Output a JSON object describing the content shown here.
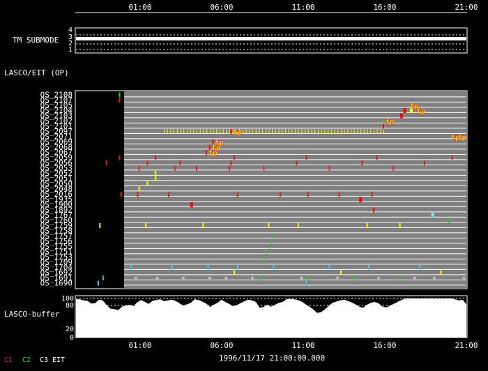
{
  "time_axis": {
    "labels": [
      "01:00",
      "06:00",
      "11:00",
      "16:00",
      "21:00"
    ],
    "start_hour": -2.9,
    "end_hour": 21.0,
    "date_label": "1996/11/17 21:00:00.000"
  },
  "panels": {
    "tm_submode": {
      "label": "TM SUBMODE",
      "ticks": [
        "4",
        "3",
        "2",
        "1"
      ]
    },
    "lasco_eit": {
      "label": "LASCO/EIT (OP)"
    },
    "lasco_buffer": {
      "label": "LASCO-buffer",
      "ticks": [
        "100",
        "80",
        "20",
        "0"
      ]
    }
  },
  "legend": [
    {
      "label": "C1",
      "color": "#e02020"
    },
    {
      "label": "C2",
      "color": "#20d020"
    },
    {
      "label": "C3",
      "color": "#ffffff"
    },
    {
      "label": "EIT",
      "color": "#ffffff"
    }
  ],
  "chart_data": {
    "type": "timeline",
    "op_rows": [
      "OS_2108",
      "OS_2107",
      "OS_2105",
      "OS_2104",
      "OS_2103",
      "OS_2102",
      "OS_2101",
      "OS_2097",
      "OS_2071",
      "OS_2069",
      "OS_2068",
      "OS_2067",
      "OS_2059",
      "OS_2056",
      "OS_2053",
      "OS_2052",
      "OS_2051",
      "OS_2050",
      "OS_2048",
      "OS_2016",
      "OS_1935",
      "OS_1900",
      "OS_1892",
      "OS_1767",
      "OS_1760",
      "OS_1759",
      "OS_1758",
      "OS_1757",
      "OS_1756",
      "OS_1755",
      "OS_1751",
      "OS_1753",
      "OS_1709",
      "OS_1704",
      "OS_1692",
      "OS_1691",
      "OS_1690"
    ],
    "events": [
      {
        "row": 0,
        "t": -0.2,
        "color": "#20d020"
      },
      {
        "row": 1,
        "t": -0.2,
        "color": "#e02020"
      },
      {
        "row": 3,
        "t": 17.2,
        "color": "#ff0000",
        "w": 2
      },
      {
        "row": 3,
        "t": 17.6,
        "color": "#ffff00",
        "w": 2
      },
      {
        "row": 4,
        "t": 17.0,
        "color": "#ff0000",
        "w": 2
      },
      {
        "row": 6,
        "t": 15.9,
        "color": "#ff0000"
      },
      {
        "row": 7,
        "t": 6.6,
        "color": "#ff0000"
      },
      {
        "row": 9,
        "t": 5.5,
        "color": "#ff0000"
      },
      {
        "row": 10,
        "t": 5.3,
        "color": "#ff0000"
      },
      {
        "row": 11,
        "t": 5.1,
        "color": "#ff0000"
      },
      {
        "row": 12,
        "t": -0.2,
        "color": "#e02020"
      },
      {
        "row": 12,
        "t": 2.0,
        "color": "#e02020"
      },
      {
        "row": 12,
        "t": 6.8,
        "color": "#e02020"
      },
      {
        "row": 12,
        "t": 11.2,
        "color": "#e02020"
      },
      {
        "row": 12,
        "t": 15.5,
        "color": "#e02020"
      },
      {
        "row": 12,
        "t": 20.1,
        "color": "#e02020"
      },
      {
        "row": 13,
        "t": -1.0,
        "color": "#e02020"
      },
      {
        "row": 13,
        "t": 1.5,
        "color": "#e02020"
      },
      {
        "row": 13,
        "t": 3.5,
        "color": "#e02020"
      },
      {
        "row": 13,
        "t": 6.6,
        "color": "#e02020"
      },
      {
        "row": 13,
        "t": 10.6,
        "color": "#e02020"
      },
      {
        "row": 13,
        "t": 14.6,
        "color": "#e02020"
      },
      {
        "row": 13,
        "t": 18.4,
        "color": "#e02020"
      },
      {
        "row": 14,
        "t": 1.0,
        "color": "#e02020"
      },
      {
        "row": 14,
        "t": 3.2,
        "color": "#e02020"
      },
      {
        "row": 14,
        "t": 4.5,
        "color": "#ff0000"
      },
      {
        "row": 14,
        "t": 6.5,
        "color": "#e02020"
      },
      {
        "row": 14,
        "t": 8.6,
        "color": "#e02020"
      },
      {
        "row": 14,
        "t": 12.6,
        "color": "#e02020"
      },
      {
        "row": 14,
        "t": 16.5,
        "color": "#e02020"
      },
      {
        "row": 15,
        "t": 2.0,
        "color": "#ffff00"
      },
      {
        "row": 16,
        "t": 2.0,
        "color": "#ffff00"
      },
      {
        "row": 17,
        "t": 1.5,
        "color": "#ffff00"
      },
      {
        "row": 18,
        "t": 1.0,
        "color": "#ffff00"
      },
      {
        "row": 19,
        "t": -0.1,
        "color": "#e02020"
      },
      {
        "row": 19,
        "t": 0.9,
        "color": "#e02020"
      },
      {
        "row": 19,
        "t": 2.8,
        "color": "#e02020"
      },
      {
        "row": 19,
        "t": 7.0,
        "color": "#e02020"
      },
      {
        "row": 19,
        "t": 9.6,
        "color": "#e02020"
      },
      {
        "row": 19,
        "t": 11.3,
        "color": "#e02020"
      },
      {
        "row": 19,
        "t": 13.2,
        "color": "#e02020"
      },
      {
        "row": 19,
        "t": 15.2,
        "color": "#e02020"
      },
      {
        "row": 20,
        "t": 14.5,
        "color": "#ff0000",
        "w": 2
      },
      {
        "row": 21,
        "t": 4.2,
        "color": "#ff0000",
        "w": 2
      },
      {
        "row": 22,
        "t": 15.3,
        "color": "#ff0000"
      },
      {
        "row": 23,
        "t": 18.9,
        "color": "#80e0ff",
        "w": 2
      },
      {
        "row": 24,
        "t": 19.9,
        "color": "#20d020"
      },
      {
        "row": 25,
        "t": -1.4,
        "color": "#ffff00"
      },
      {
        "row": 25,
        "t": 1.4,
        "color": "#ffff00"
      },
      {
        "row": 25,
        "t": 4.9,
        "color": "#ffff00"
      },
      {
        "row": 25,
        "t": 8.9,
        "color": "#ffff00"
      },
      {
        "row": 25,
        "t": 10.7,
        "color": "#ffff00"
      },
      {
        "row": 25,
        "t": 14.9,
        "color": "#ffff00"
      },
      {
        "row": 25,
        "t": 16.9,
        "color": "#ffff00"
      },
      {
        "row": 33,
        "t": 0.5,
        "color": "#40d0f0"
      },
      {
        "row": 33,
        "t": 3.0,
        "color": "#40d0f0"
      },
      {
        "row": 33,
        "t": 5.2,
        "color": "#40d0f0"
      },
      {
        "row": 33,
        "t": 7.0,
        "color": "#40d0f0"
      },
      {
        "row": 33,
        "t": 9.2,
        "color": "#40d0f0"
      },
      {
        "row": 33,
        "t": 12.6,
        "color": "#40d0f0"
      },
      {
        "row": 33,
        "t": 15.0,
        "color": "#40d0f0"
      },
      {
        "row": 33,
        "t": 18.1,
        "color": "#40d0f0"
      },
      {
        "row": 34,
        "t": 6.8,
        "color": "#ffff00"
      },
      {
        "row": 34,
        "t": 13.3,
        "color": "#ffff00"
      },
      {
        "row": 34,
        "t": 19.4,
        "color": "#ffff00"
      },
      {
        "row": 35,
        "t": -1.2,
        "color": "#20d020"
      },
      {
        "row": 35,
        "t": 8.4,
        "color": "#20d020"
      },
      {
        "row": 35,
        "t": 11.3,
        "color": "#20d020"
      },
      {
        "row": 35,
        "t": 14.1,
        "color": "#20d020"
      },
      {
        "row": 35,
        "t": 16.9,
        "color": "#20d020"
      },
      {
        "row": 36,
        "t": -1.5,
        "color": "#40d0f0"
      },
      {
        "row": 36,
        "t": 11.2,
        "color": "#40d0f0"
      }
    ],
    "fp_labels": [
      {
        "row": 2,
        "t": 17.5
      },
      {
        "row": 3,
        "t": 17.9
      },
      {
        "row": 5,
        "t": 16.0
      },
      {
        "row": 7,
        "t": 6.7
      },
      {
        "row": 8,
        "t": 20.0
      },
      {
        "row": 8,
        "t": 20.4
      },
      {
        "row": 9,
        "t": 5.6
      },
      {
        "row": 10,
        "t": 5.4
      },
      {
        "row": 11,
        "t": 5.2
      }
    ],
    "dash_rows": [
      {
        "row": 7,
        "start": 2.5,
        "end": 16.0,
        "color": "#ffff00"
      }
    ],
    "diagonal_runs": [
      {
        "row_start": 27,
        "row_end": 31,
        "t_start": 9.3,
        "t_end": 8.6,
        "color": "#20d020"
      }
    ],
    "star_rows": [
      {
        "row": 35,
        "times": [
          0.8,
          2.1,
          3.7,
          5.3,
          6.3,
          7.9,
          10.9,
          13.1,
          15.6,
          17.8,
          19.0,
          20.8
        ]
      }
    ],
    "buffer_series": [
      98,
      98,
      95,
      94,
      87,
      88,
      97,
      95,
      83,
      74,
      73,
      70,
      79,
      82,
      84,
      80,
      90,
      96,
      91,
      86,
      94,
      96,
      98,
      93,
      95,
      97,
      94,
      88,
      82,
      85,
      89,
      98,
      96,
      92,
      87,
      78,
      84,
      89,
      97,
      91,
      86,
      80,
      83,
      88,
      93,
      97,
      95,
      91,
      76,
      78,
      84,
      79,
      84,
      89,
      91,
      98,
      99,
      98,
      96,
      92,
      85,
      79,
      72,
      63,
      65,
      72,
      81,
      89,
      92,
      95,
      97,
      94,
      90,
      85,
      79,
      76,
      84,
      89,
      91,
      88,
      80,
      77,
      81,
      86,
      91,
      96,
      100,
      100,
      100,
      100,
      100,
      100,
      100,
      100,
      100,
      100,
      100,
      100,
      100,
      98,
      95,
      97,
      85
    ]
  }
}
